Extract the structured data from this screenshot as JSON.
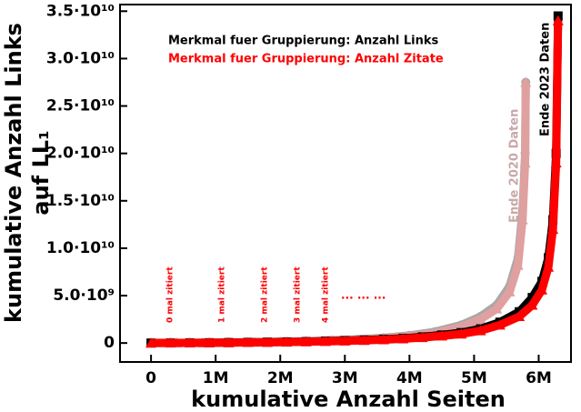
{
  "chart_data": {
    "type": "scatter",
    "xlabel": "kumulative Anzahl Seiten",
    "ylabel": [
      "kumulative Anzahl Links",
      "auf LL₁"
    ],
    "xlim": [
      -480000,
      6500000
    ],
    "ylim": [
      -2000000000.0,
      35700000000.0
    ],
    "xticks": [
      0,
      {
        "value": 1000000,
        "label": "1M"
      },
      {
        "value": 2000000,
        "label": "2M"
      },
      {
        "value": 3000000,
        "label": "3M"
      },
      {
        "value": 4000000,
        "label": "4M"
      },
      {
        "value": 5000000,
        "label": "5M"
      },
      {
        "value": 6000000,
        "label": "6M"
      }
    ],
    "yticks": [
      0,
      {
        "value": 5000000000.0,
        "label": "5.0·10⁹"
      },
      {
        "value": 10000000000.0,
        "label": "1.0·10¹⁰"
      },
      {
        "value": 15000000000.0,
        "label": "1.5·10¹⁰"
      },
      {
        "value": 20000000000.0,
        "label": "2.0·10¹⁰"
      },
      {
        "value": 25000000000.0,
        "label": "2.5·10¹⁰"
      },
      {
        "value": 30000000000.0,
        "label": "3.0·10¹⁰"
      },
      {
        "value": 35000000000.0,
        "label": "3.5·10¹⁰"
      }
    ],
    "annotations": [
      "0 mal zitiert",
      "1 mal zitiert",
      "2 mal zitiert",
      "3 mal zitiert",
      "4 mal zitiert",
      "... ... ...",
      "Ende 2020 Daten",
      "Ende 2023 Daten"
    ],
    "series": [
      {
        "color": "#a8a8a8",
        "marker": "circle",
        "x": [
          0,
          400000,
          800000,
          1200000,
          1600000,
          2000000,
          2400000,
          2800000,
          3200000,
          3600000,
          4000000,
          4400000,
          4800000,
          5100000,
          5350000,
          5550000,
          5680000,
          5750000,
          5790000,
          5800000
        ],
        "values": [
          0,
          20000000.0,
          40000000.0,
          70000000.0,
          100000000.0,
          150000000.0,
          200000000.0,
          300000000.0,
          400000000.0,
          550000000.0,
          800000000.0,
          1200000000.0,
          1900000000.0,
          2800000000.0,
          4000000000.0,
          6000000000.0,
          9000000000.0,
          14000000000.0,
          20000000000.0,
          27500000000.0
        ]
      },
      {
        "color": "#e0a0a0",
        "marker": "triangle",
        "x": [
          0,
          400000,
          800000,
          1200000,
          1600000,
          2000000,
          2400000,
          2800000,
          3200000,
          3600000,
          4000000,
          4400000,
          4800000,
          5100000,
          5350000,
          5550000,
          5680000,
          5750000,
          5790000,
          5800000
        ],
        "values": [
          0,
          10000000.0,
          30000000.0,
          50000000.0,
          80000000.0,
          120000000.0,
          170000000.0,
          250000000.0,
          340000000.0,
          480000000.0,
          700000000.0,
          1050000000.0,
          1700000000.0,
          2500000000.0,
          3600000000.0,
          5400000000.0,
          8200000000.0,
          13000000000.0,
          19000000000.0,
          27500000000.0
        ]
      },
      {
        "name": "Merkmal fuer Gruppierung: Anzahl Links",
        "color": "#000000",
        "marker": "square",
        "x": [
          0,
          300000,
          600000,
          900000,
          1200000,
          1500000,
          1800000,
          2100000,
          2400000,
          2700000,
          3000000,
          3300000,
          3600000,
          3900000,
          4200000,
          4500000,
          4800000,
          5100000,
          5400000,
          5700000,
          5900000,
          6050000,
          6150000,
          6220000,
          6270000,
          6300000
        ],
        "values": [
          0,
          10000000.0,
          20000000.0,
          30000000.0,
          50000000.0,
          70000000.0,
          90000000.0,
          120000000.0,
          150000000.0,
          200000000.0,
          250000000.0,
          320000000.0,
          400000000.0,
          500000000.0,
          650000000.0,
          850000000.0,
          1100000000.0,
          1500000000.0,
          2200000000.0,
          3300000000.0,
          4800000000.0,
          6500000000.0,
          9000000000.0,
          13000000000.0,
          20000000000.0,
          34500000000.0
        ]
      },
      {
        "name": "Merkmal fuer Gruppierung: Anzahl Zitate",
        "color": "#ff0000",
        "marker": "triangle",
        "x": [
          0,
          300000,
          600000,
          900000,
          1200000,
          1500000,
          1800000,
          2100000,
          2400000,
          2700000,
          3000000,
          3300000,
          3600000,
          3900000,
          4200000,
          4500000,
          4800000,
          5100000,
          5400000,
          5700000,
          5900000,
          6050000,
          6150000,
          6220000,
          6270000,
          6300000
        ],
        "values": [
          0,
          10000000.0,
          20000000.0,
          30000000.0,
          40000000.0,
          60000000.0,
          80000000.0,
          100000000.0,
          130000000.0,
          170000000.0,
          220000000.0,
          280000000.0,
          350000000.0,
          450000000.0,
          580000000.0,
          750000000.0,
          950000000.0,
          1300000000.0,
          1900000000.0,
          2800000000.0,
          4000000000.0,
          5600000000.0,
          8000000000.0,
          12000000000.0,
          19000000000.0,
          34000000000.0
        ]
      }
    ]
  }
}
